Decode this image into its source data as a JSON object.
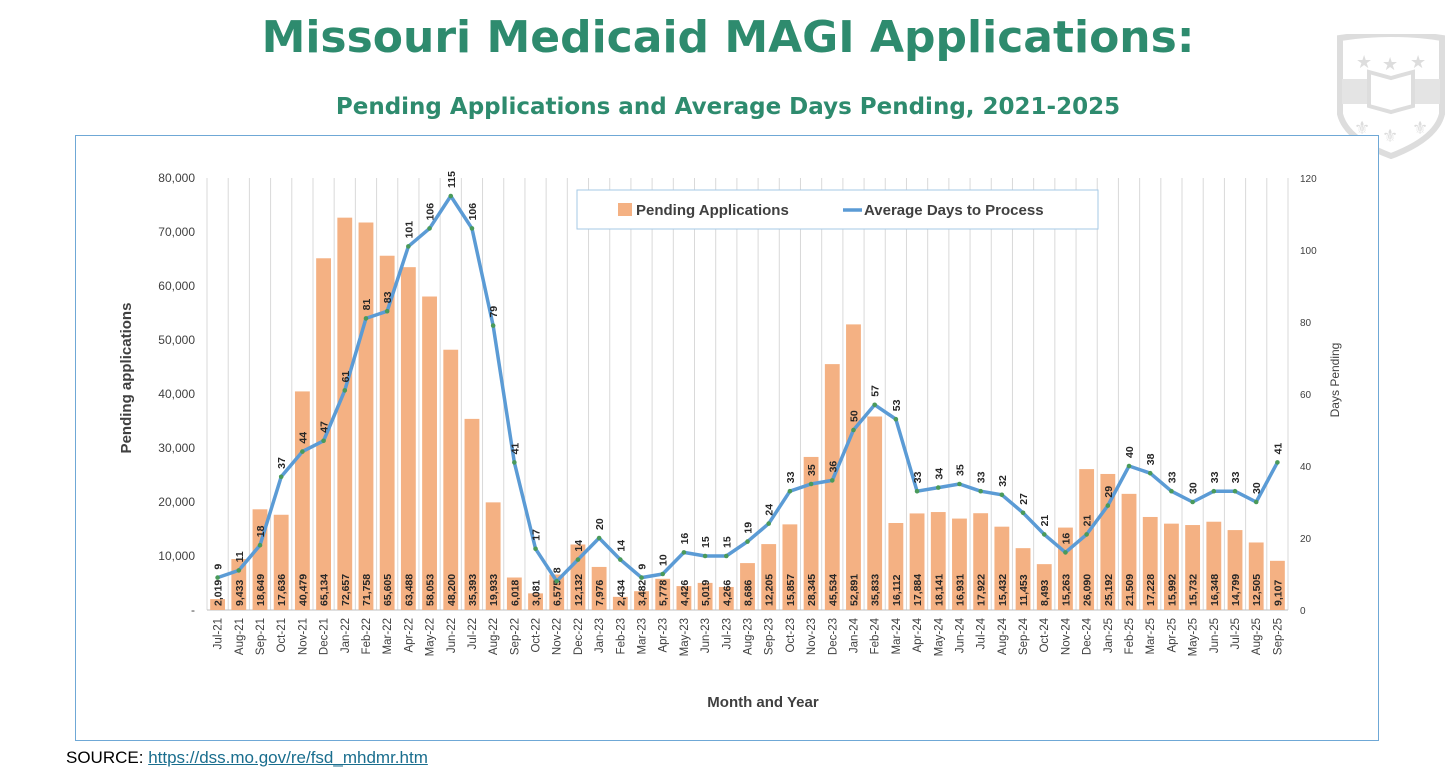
{
  "header": {
    "title": "Missouri Medicaid MAGI Applications:",
    "subtitle": "Pending Applications and Average Days Pending, 2021-2025"
  },
  "source": {
    "label": "SOURCE: ",
    "link": "https://dss.mo.gov/re/fsd_mhdmr.htm"
  },
  "colors": {
    "bar": "#f4b183",
    "line": "#5b9bd5",
    "marker": "#4a9a5a",
    "title": "#2e8b6e"
  },
  "chart_data": {
    "type": "bar+line",
    "xlabel": "Month and Year",
    "ylabel": "Pending applications",
    "y2label": "Days Pending",
    "ylim": [
      0,
      80000
    ],
    "y2lim": [
      0,
      120
    ],
    "yticks": [
      "-",
      "10,000",
      "20,000",
      "30,000",
      "40,000",
      "50,000",
      "60,000",
      "70,000",
      "80,000"
    ],
    "y2ticks": [
      "0",
      "20",
      "40",
      "60",
      "80",
      "100",
      "120"
    ],
    "legend": {
      "placement": "top-center",
      "entries": [
        "Pending Applications",
        "Average Days to Process"
      ]
    },
    "categories": [
      "Jul-21",
      "Aug-21",
      "Sep-21",
      "Oct-21",
      "Nov-21",
      "Dec-21",
      "Jan-22",
      "Feb-22",
      "Mar-22",
      "Apr-22",
      "May-22",
      "Jun-22",
      "Jul-22",
      "Aug-22",
      "Sep-22",
      "Oct-22",
      "Nov-22",
      "Dec-22",
      "Jan-23",
      "Feb-23",
      "Mar-23",
      "Apr-23",
      "May-23",
      "Jun-23",
      "Jul-23",
      "Aug-23",
      "Sep-23",
      "Oct-23",
      "Nov-23",
      "Dec-23",
      "Jan-24",
      "Feb-24",
      "Mar-24",
      "Apr-24",
      "May-24",
      "Jun-24",
      "Jul-24",
      "Aug-24",
      "Sep-24",
      "Oct-24",
      "Nov-24",
      "Dec-24",
      "Jan-25",
      "Feb-25",
      "Mar-25",
      "Apr-25",
      "May-25",
      "Jun-25",
      "Jul-25",
      "Aug-25",
      "Sep-25"
    ],
    "series": [
      {
        "name": "Pending Applications",
        "type": "bar",
        "axis": "left",
        "values": [
          2019,
          9433,
          18649,
          17636,
          40479,
          65134,
          72657,
          71758,
          65605,
          63488,
          58053,
          48200,
          35393,
          19933,
          6018,
          3081,
          6575,
          12132,
          7976,
          2434,
          3482,
          5778,
          4426,
          5019,
          4266,
          8686,
          12205,
          15857,
          28345,
          45534,
          52891,
          35833,
          16112,
          17884,
          18141,
          16931,
          17922,
          15432,
          11453,
          8493,
          15263,
          26090,
          25192,
          21509,
          17228,
          15992,
          15732,
          16348,
          14799,
          12505,
          9107
        ]
      },
      {
        "name": "Average Days to Process",
        "type": "line",
        "axis": "right",
        "values": [
          9,
          11,
          18,
          37,
          44,
          47,
          61,
          81,
          83,
          101,
          106,
          115,
          106,
          79,
          41,
          17,
          8,
          14,
          20,
          14,
          9,
          10,
          16,
          15,
          15,
          19,
          24,
          33,
          35,
          36,
          50,
          57,
          53,
          33,
          34,
          35,
          33,
          32,
          27,
          21,
          16,
          21,
          29,
          40,
          38,
          33,
          30,
          33,
          33,
          30,
          41
        ]
      }
    ]
  }
}
